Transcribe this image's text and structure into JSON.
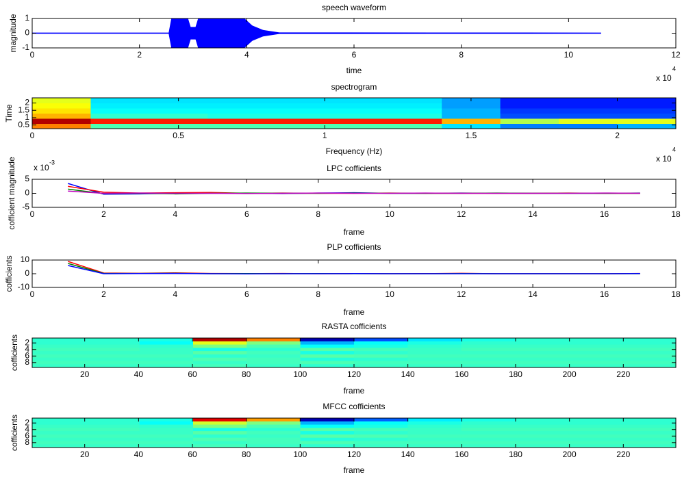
{
  "chart_data": [
    {
      "type": "area",
      "title": "speech waveform",
      "xlabel": "time",
      "ylabel": "magnitude",
      "xmultiplier": "x 10",
      "xexponent": "4",
      "color": "#0000ff",
      "x": [
        0,
        2.55,
        2.6,
        2.9,
        2.95,
        3.05,
        3.1,
        3.95,
        4.1,
        4.3,
        4.6,
        10.6
      ],
      "values": [
        0.02,
        0.02,
        1,
        1,
        0.4,
        0.4,
        1,
        1,
        0.5,
        0.2,
        0.03,
        0.02
      ],
      "xlim": [
        0,
        12
      ],
      "xticks": [
        0,
        2,
        4,
        6,
        8,
        10,
        12
      ],
      "ylim": [
        -1,
        1
      ],
      "yticks": [
        -1,
        0,
        1
      ]
    },
    {
      "type": "heatmap",
      "title": "spectrogram",
      "xlabel": "Frequency (Hz)",
      "ylabel": "Time",
      "xmultiplier": "x 10",
      "xexponent": "4",
      "yreverse": false,
      "clim": [
        0,
        1
      ],
      "xlim": [
        0,
        2.2
      ],
      "xticks": [
        0,
        0.5,
        1,
        1.5,
        2
      ],
      "ylim": [
        0.25,
        2.35
      ],
      "yticks": [
        0.5,
        1,
        1.5,
        2
      ],
      "z": [
        [
          0.75,
          0.45,
          0.45,
          0.45,
          0.45,
          0.45,
          0.45,
          0.35,
          0.25,
          0.25,
          0.3
        ],
        [
          0.95,
          0.85,
          0.85,
          0.85,
          0.85,
          0.85,
          0.85,
          0.7,
          0.55,
          0.6,
          0.6
        ],
        [
          0.7,
          0.42,
          0.42,
          0.4,
          0.4,
          0.4,
          0.4,
          0.3,
          0.2,
          0.2,
          0.2
        ],
        [
          0.65,
          0.38,
          0.38,
          0.38,
          0.38,
          0.38,
          0.38,
          0.3,
          0.18,
          0.18,
          0.18
        ],
        [
          0.62,
          0.36,
          0.36,
          0.36,
          0.36,
          0.36,
          0.36,
          0.28,
          0.15,
          0.15,
          0.15
        ],
        [
          0.6,
          0.35,
          0.35,
          0.35,
          0.35,
          0.35,
          0.35,
          0.28,
          0.15,
          0.15,
          0.15
        ]
      ]
    },
    {
      "type": "line",
      "title": "LPC cofficients",
      "xlabel": "frame",
      "ylabel": "cofficient magnitude",
      "ymultiplier": "x 10",
      "yexponent": "-3",
      "x": [
        1,
        2,
        3,
        4,
        5,
        6,
        7,
        8,
        9,
        10,
        11,
        12,
        13,
        14,
        15,
        16,
        17
      ],
      "series": [
        {
          "color": "#0000ff",
          "values": [
            3.5,
            -0.3,
            -0.2,
            0,
            0.1,
            0,
            -0.1,
            0.1,
            0.2,
            0,
            0,
            0.1,
            0,
            0,
            0,
            0,
            0.1
          ]
        },
        {
          "color": "#ff0000",
          "values": [
            2.5,
            0.4,
            0.1,
            0.2,
            0.3,
            0,
            0.1,
            0,
            0,
            0.1,
            0,
            0,
            0,
            0,
            0.1,
            0,
            0
          ]
        },
        {
          "color": "#008000",
          "values": [
            1.5,
            -0.1,
            0,
            -0.2,
            0,
            0.1,
            0,
            0,
            0.1,
            0,
            0,
            0,
            0.1,
            0,
            0,
            0,
            0
          ]
        },
        {
          "color": "#bf00bf",
          "values": [
            0.8,
            0,
            0.1,
            0,
            0,
            -0.1,
            0,
            0.1,
            0,
            0,
            0.1,
            0,
            0,
            0,
            0,
            0.1,
            0
          ]
        }
      ],
      "xlim": [
        0,
        18
      ],
      "xticks": [
        0,
        2,
        4,
        6,
        8,
        10,
        12,
        14,
        16,
        18
      ],
      "ylim": [
        -5,
        5
      ],
      "yticks": [
        -5,
        0,
        5
      ]
    },
    {
      "type": "line",
      "title": "PLP cofficients",
      "xlabel": "frame",
      "ylabel": "cofficients",
      "x": [
        1,
        2,
        3,
        4,
        5,
        6,
        7,
        8,
        9,
        10,
        11,
        12,
        13,
        14,
        15,
        16,
        17
      ],
      "series": [
        {
          "color": "#ff0000",
          "values": [
            9,
            0.5,
            0.3,
            0.6,
            0.2,
            0.1,
            0.2,
            0,
            0.1,
            0,
            0.1,
            0.3,
            0,
            0,
            0,
            0,
            0.2
          ]
        },
        {
          "color": "#008000",
          "values": [
            7.5,
            0.2,
            0.2,
            0.3,
            0,
            0.1,
            0,
            0.1,
            0,
            0,
            0,
            0.1,
            0,
            0,
            0,
            0,
            0
          ]
        },
        {
          "color": "#0000ff",
          "values": [
            6,
            0,
            0.1,
            0.2,
            0,
            -0.1,
            0,
            0,
            0.1,
            0,
            0,
            0,
            0,
            0,
            0,
            0,
            0.1
          ]
        }
      ],
      "xlim": [
        0,
        18
      ],
      "xticks": [
        0,
        2,
        4,
        6,
        8,
        10,
        12,
        14,
        16,
        18
      ],
      "ylim": [
        -10,
        10
      ],
      "yticks": [
        -10,
        0,
        10
      ]
    },
    {
      "type": "heatmap",
      "title": "RASTA cofficients",
      "xlabel": "frame",
      "ylabel": "cofficients",
      "yreverse": true,
      "clim": [
        0,
        1
      ],
      "xlim": [
        0.5,
        239.5
      ],
      "xticks": [
        20,
        40,
        60,
        80,
        100,
        120,
        140,
        160,
        180,
        200,
        220
      ],
      "ylim": [
        0.5,
        9.5
      ],
      "yticks": [
        2,
        4,
        6,
        8
      ],
      "z": [
        [
          0.42,
          0.42,
          0.4,
          0.95,
          0.75,
          0.05,
          0.2,
          0.35,
          0.4,
          0.42,
          0.42,
          0.42
        ],
        [
          0.42,
          0.42,
          0.38,
          0.6,
          0.5,
          0.3,
          0.38,
          0.4,
          0.42,
          0.42,
          0.42,
          0.42
        ],
        [
          0.43,
          0.43,
          0.42,
          0.5,
          0.45,
          0.38,
          0.4,
          0.42,
          0.43,
          0.43,
          0.43,
          0.43
        ],
        [
          0.44,
          0.44,
          0.43,
          0.4,
          0.42,
          0.46,
          0.44,
          0.43,
          0.44,
          0.44,
          0.44,
          0.44
        ],
        [
          0.43,
          0.43,
          0.43,
          0.46,
          0.44,
          0.4,
          0.42,
          0.43,
          0.43,
          0.43,
          0.43,
          0.43
        ],
        [
          0.44,
          0.44,
          0.44,
          0.42,
          0.43,
          0.46,
          0.45,
          0.44,
          0.44,
          0.44,
          0.44,
          0.44
        ],
        [
          0.43,
          0.43,
          0.43,
          0.45,
          0.44,
          0.41,
          0.42,
          0.43,
          0.43,
          0.43,
          0.43,
          0.43
        ],
        [
          0.44,
          0.44,
          0.44,
          0.43,
          0.44,
          0.45,
          0.44,
          0.44,
          0.44,
          0.44,
          0.44,
          0.44
        ],
        [
          0.43,
          0.43,
          0.43,
          0.44,
          0.43,
          0.42,
          0.43,
          0.43,
          0.43,
          0.43,
          0.43,
          0.43
        ]
      ]
    },
    {
      "type": "heatmap",
      "title": "MFCC cofficients",
      "xlabel": "frame",
      "ylabel": "cofficients",
      "yreverse": true,
      "clim": [
        0,
        1
      ],
      "xlim": [
        0.5,
        239.5
      ],
      "xticks": [
        20,
        40,
        60,
        80,
        100,
        120,
        140,
        160,
        180,
        200,
        220
      ],
      "ylim": [
        0.5,
        9.5
      ],
      "yticks": [
        2,
        4,
        6,
        8
      ],
      "z": [
        [
          0.42,
          0.42,
          0.4,
          0.9,
          0.72,
          0.05,
          0.22,
          0.36,
          0.4,
          0.42,
          0.42,
          0.42
        ],
        [
          0.42,
          0.42,
          0.38,
          0.58,
          0.5,
          0.3,
          0.38,
          0.4,
          0.42,
          0.42,
          0.42,
          0.42
        ],
        [
          0.43,
          0.43,
          0.42,
          0.5,
          0.45,
          0.38,
          0.4,
          0.42,
          0.43,
          0.43,
          0.43,
          0.43
        ],
        [
          0.44,
          0.44,
          0.43,
          0.4,
          0.42,
          0.46,
          0.44,
          0.43,
          0.44,
          0.44,
          0.44,
          0.44
        ],
        [
          0.43,
          0.43,
          0.43,
          0.46,
          0.44,
          0.4,
          0.42,
          0.43,
          0.43,
          0.43,
          0.43,
          0.43
        ],
        [
          0.44,
          0.44,
          0.44,
          0.42,
          0.43,
          0.46,
          0.45,
          0.44,
          0.44,
          0.44,
          0.44,
          0.44
        ],
        [
          0.43,
          0.43,
          0.43,
          0.45,
          0.44,
          0.41,
          0.42,
          0.43,
          0.43,
          0.43,
          0.43,
          0.43
        ],
        [
          0.44,
          0.44,
          0.44,
          0.43,
          0.44,
          0.45,
          0.44,
          0.44,
          0.44,
          0.44,
          0.44,
          0.44
        ],
        [
          0.43,
          0.43,
          0.43,
          0.44,
          0.43,
          0.42,
          0.43,
          0.43,
          0.43,
          0.43,
          0.43,
          0.43
        ]
      ]
    }
  ]
}
